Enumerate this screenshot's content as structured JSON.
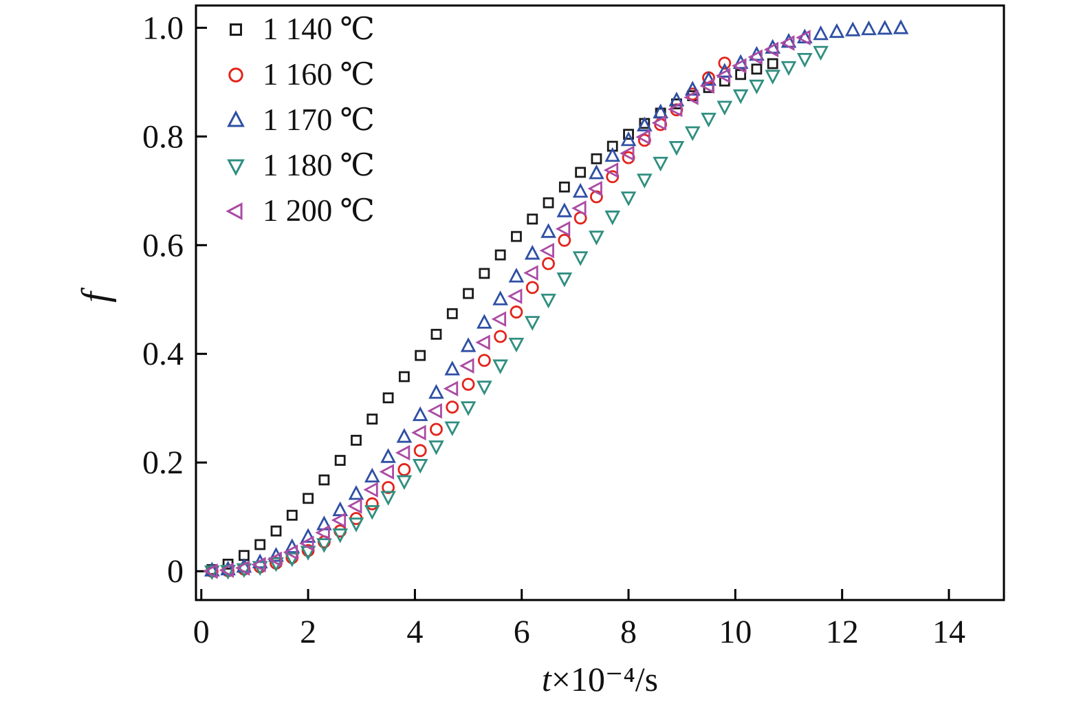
{
  "figure": {
    "background": "#ffffff",
    "frame_color": "#000000",
    "text_color": "#111111"
  },
  "axes": {
    "xlabel_var": "t",
    "xlabel_rest": "×10⁻⁴/s",
    "ylabel": "f",
    "x_tick_labels": [
      "0",
      "2",
      "4",
      "6",
      "8",
      "10",
      "12",
      "14"
    ],
    "y_tick_labels": [
      "0",
      "0.2",
      "0.4",
      "0.6",
      "0.8",
      "1.0"
    ]
  },
  "legend": {
    "position": "upper-left",
    "items": [
      {
        "label": "1 140 ℃",
        "marker": "square",
        "color": "#1a1a1a"
      },
      {
        "label": "1 160 ℃",
        "marker": "circle",
        "color": "#e2231a"
      },
      {
        "label": "1 170 ℃",
        "marker": "triangle-up",
        "color": "#2e4fa4"
      },
      {
        "label": "1 180 ℃",
        "marker": "triangle-down",
        "color": "#2f8e80"
      },
      {
        "label": "1 200 ℃",
        "marker": "triangle-left",
        "color": "#aa4ba4"
      }
    ]
  },
  "chart_data": {
    "type": "scatter",
    "title": "",
    "xlabel": "t×10⁻⁴/s",
    "ylabel": "f",
    "xlim": [
      -0.1,
      15.03
    ],
    "ylim": [
      -0.053,
      1.041
    ],
    "x_ticks": [
      0,
      2,
      4,
      6,
      8,
      10,
      12,
      14
    ],
    "y_ticks": [
      0,
      0.2,
      0.4,
      0.6,
      0.8,
      1.0
    ],
    "grid": false,
    "legend_position": "upper-left",
    "series": [
      {
        "name": "1 140 ℃",
        "marker": "square",
        "color": "#1a1a1a",
        "x_start": 0.2,
        "x_step": 0.3,
        "values": [
          0.003,
          0.013,
          0.029,
          0.049,
          0.074,
          0.103,
          0.134,
          0.168,
          0.204,
          0.241,
          0.28,
          0.319,
          0.358,
          0.397,
          0.436,
          0.474,
          0.511,
          0.548,
          0.582,
          0.616,
          0.648,
          0.678,
          0.707,
          0.734,
          0.759,
          0.782,
          0.804,
          0.824,
          0.843,
          0.86,
          0.875,
          0.89,
          0.902,
          0.914,
          0.924,
          0.934
        ]
      },
      {
        "name": "1 160 ℃",
        "marker": "circle",
        "color": "#e2231a",
        "x_start": 0.2,
        "x_step": 0.3,
        "values": [
          0.0,
          0.001,
          0.004,
          0.008,
          0.015,
          0.025,
          0.038,
          0.054,
          0.074,
          0.097,
          0.124,
          0.154,
          0.187,
          0.222,
          0.261,
          0.302,
          0.344,
          0.388,
          0.432,
          0.477,
          0.522,
          0.566,
          0.609,
          0.65,
          0.689,
          0.726,
          0.761,
          0.793,
          0.822,
          0.849,
          0.878,
          0.908,
          0.935
        ]
      },
      {
        "name": "1 170 ℃",
        "marker": "triangle-up",
        "color": "#2e4fa4",
        "x_start": 0.2,
        "x_step": 0.3,
        "values": [
          0.001,
          0.003,
          0.008,
          0.016,
          0.028,
          0.044,
          0.063,
          0.086,
          0.112,
          0.142,
          0.174,
          0.21,
          0.247,
          0.287,
          0.328,
          0.371,
          0.414,
          0.457,
          0.5,
          0.542,
          0.584,
          0.624,
          0.662,
          0.698,
          0.732,
          0.764,
          0.793,
          0.82,
          0.844,
          0.866,
          0.886,
          0.904,
          0.919,
          0.935,
          0.95,
          0.963,
          0.974,
          0.982,
          0.988,
          0.992,
          0.995,
          0.997,
          0.998,
          0.999
        ]
      },
      {
        "name": "1 180 ℃",
        "marker": "triangle-down",
        "color": "#2f8e80",
        "x_start": 0.2,
        "x_step": 0.3,
        "values": [
          0.0,
          0.001,
          0.004,
          0.008,
          0.015,
          0.024,
          0.036,
          0.05,
          0.068,
          0.088,
          0.111,
          0.137,
          0.166,
          0.196,
          0.23,
          0.265,
          0.302,
          0.34,
          0.379,
          0.419,
          0.459,
          0.5,
          0.539,
          0.578,
          0.616,
          0.653,
          0.688,
          0.721,
          0.752,
          0.781,
          0.808,
          0.833,
          0.855,
          0.876,
          0.894,
          0.912,
          0.928,
          0.943,
          0.956
        ]
      },
      {
        "name": "1 200 ℃",
        "marker": "triangle-left",
        "color": "#aa4ba4",
        "x_start": 0.2,
        "x_step": 0.3,
        "values": [
          0.0,
          0.002,
          0.006,
          0.012,
          0.022,
          0.035,
          0.051,
          0.071,
          0.094,
          0.12,
          0.15,
          0.183,
          0.218,
          0.255,
          0.295,
          0.336,
          0.378,
          0.421,
          0.464,
          0.506,
          0.549,
          0.59,
          0.63,
          0.668,
          0.704,
          0.738,
          0.769,
          0.799,
          0.825,
          0.85,
          0.872,
          0.893,
          0.912,
          0.93,
          0.946,
          0.96,
          0.972,
          0.982
        ]
      }
    ]
  }
}
